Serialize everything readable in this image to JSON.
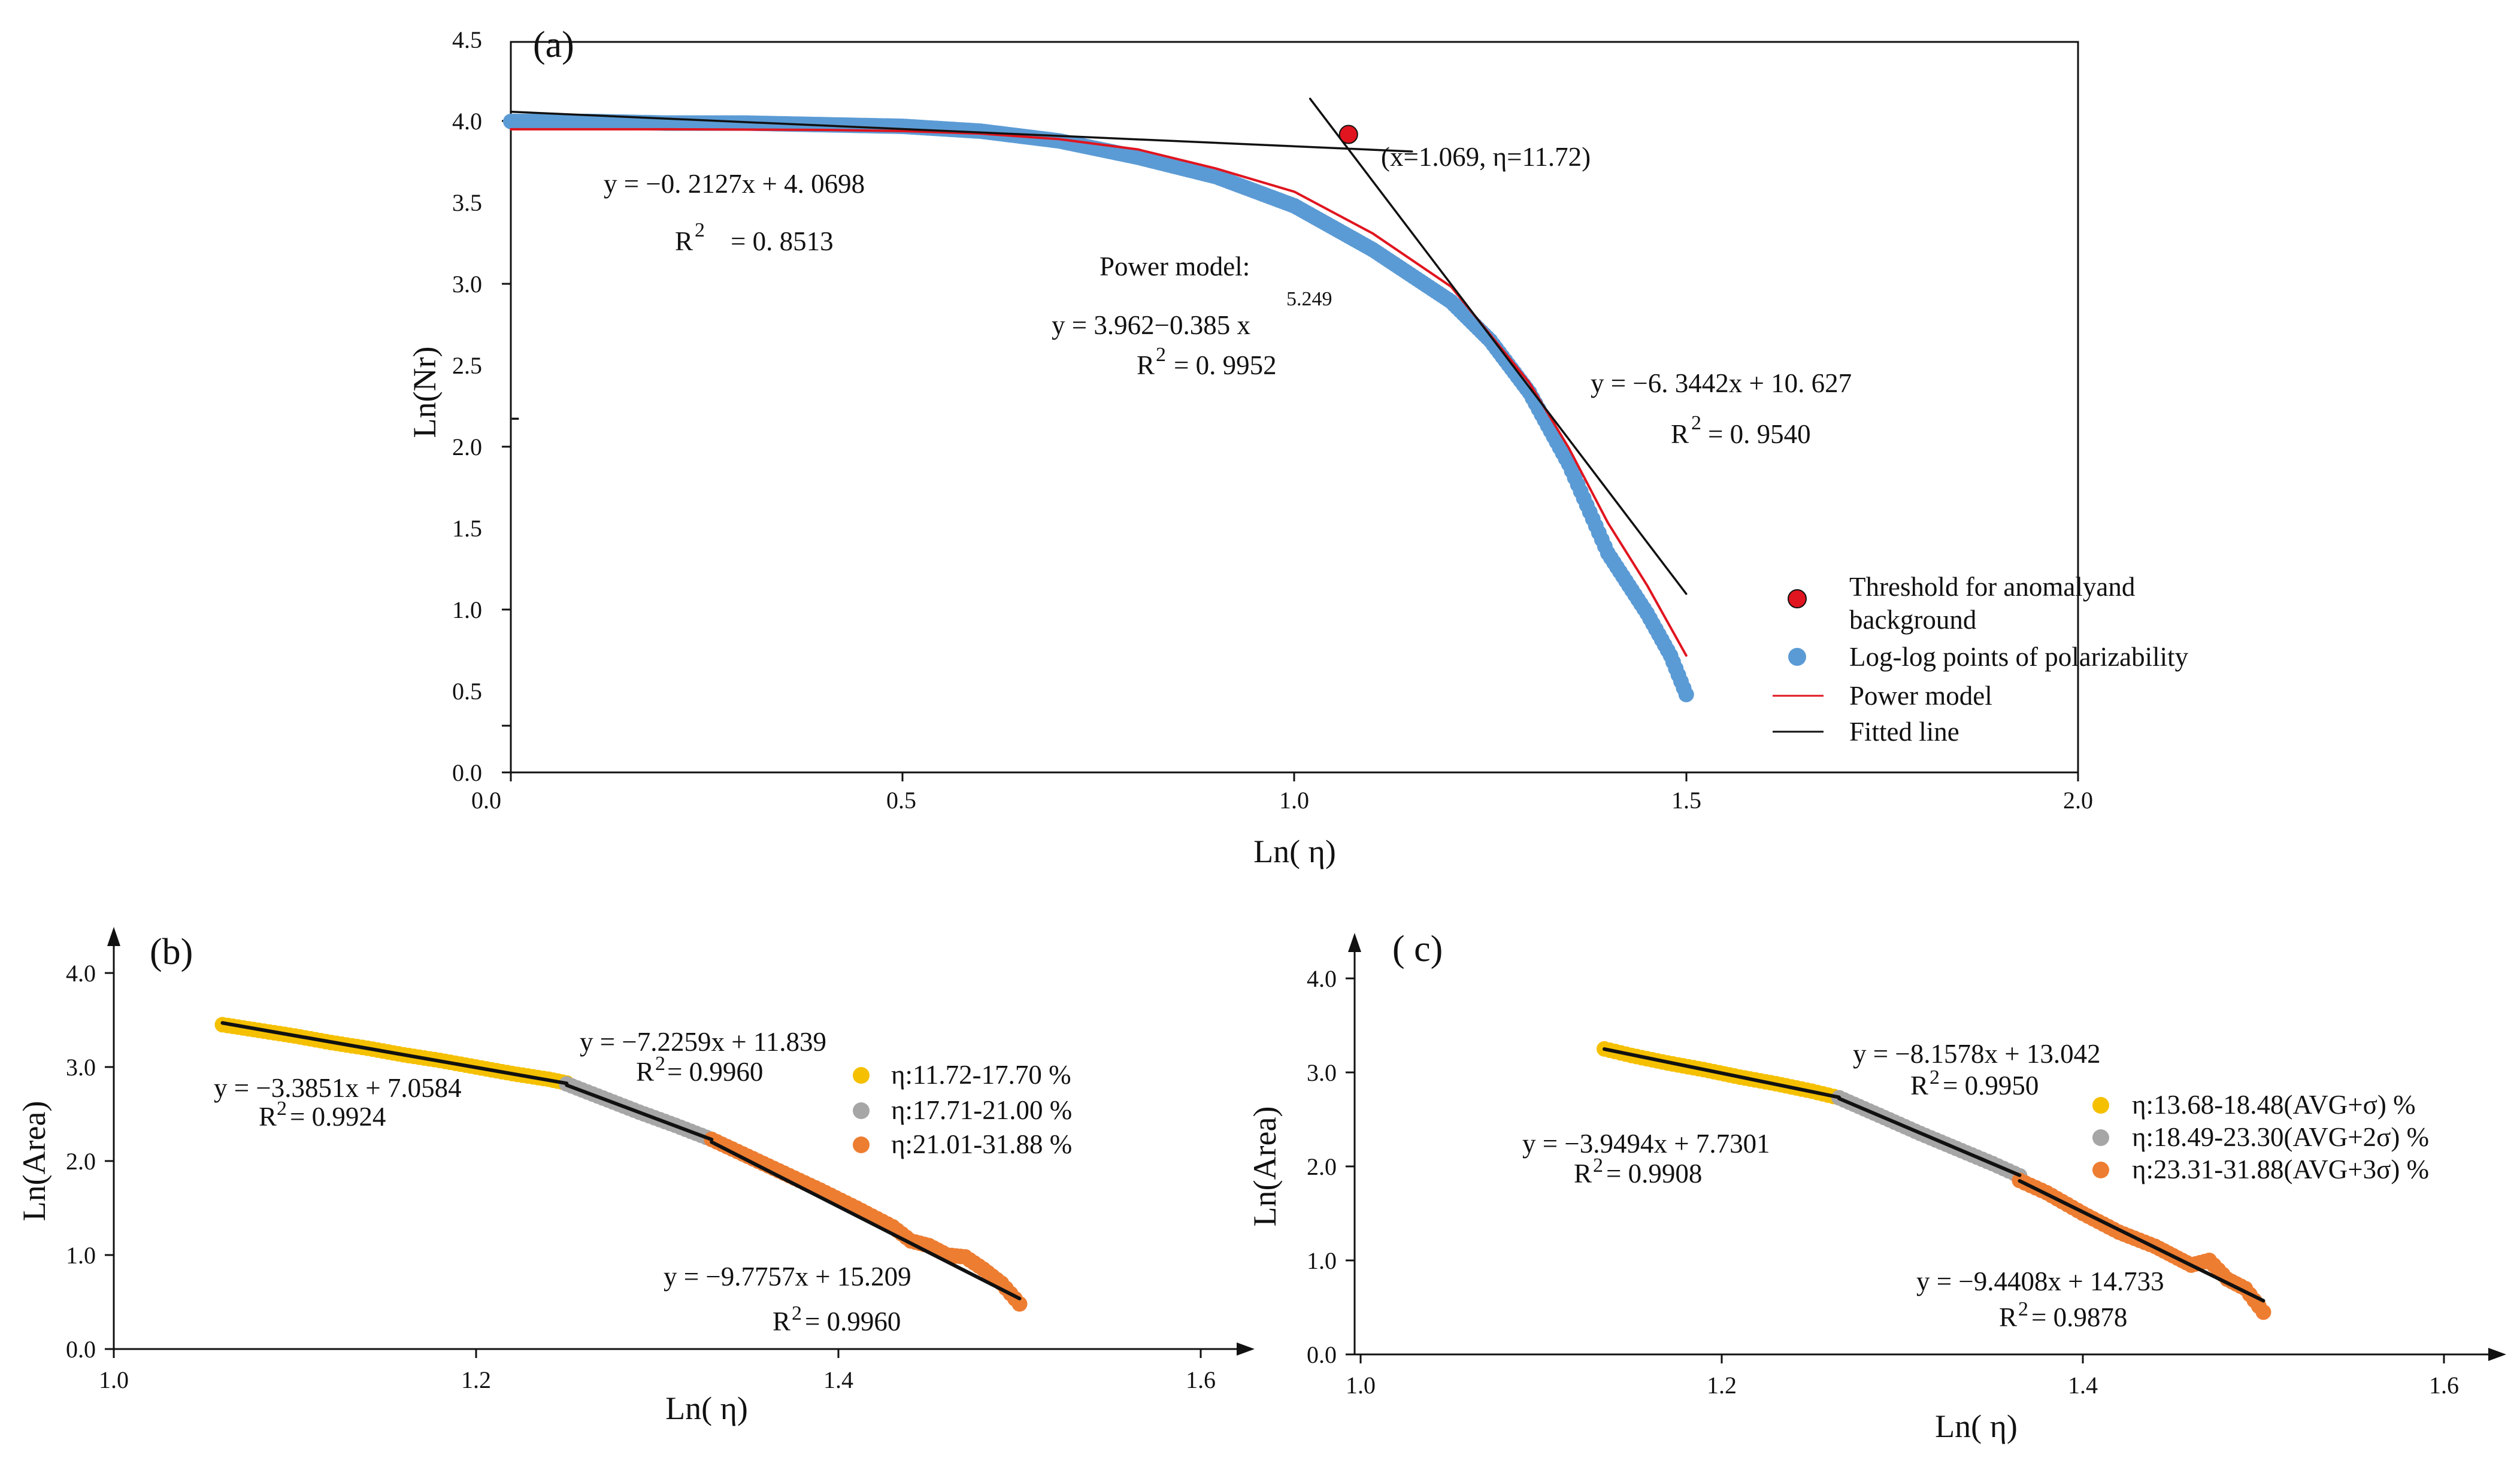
{
  "colors": {
    "blue_points": "#5b9bd5",
    "red_model": "#e0151f",
    "threshold_fill": "#e0151f",
    "fitted_line": "#111111",
    "yellow": "#f5c000",
    "gray": "#a6a6a6",
    "orange": "#ed7d31"
  },
  "chart_data": [
    {
      "id": "a",
      "type": "scatter",
      "panel_label": "(a)",
      "xlabel": "Ln( η)",
      "ylabel": "Ln(Nr)",
      "xlim": [
        0,
        2
      ],
      "ylim": [
        0,
        4.5
      ],
      "x_ticks": [
        "0.0",
        "0.5",
        "1.0",
        "1.5",
        "2.0"
      ],
      "y_ticks": [
        "0.0",
        "0.5",
        "1.0",
        "1.5",
        "2.0",
        "2.5",
        "3.0",
        "3.5",
        "4.0",
        "4.5"
      ],
      "series": [
        {
          "name": "Log-log points of polarizability",
          "kind": "points",
          "x": [
            0.0,
            0.1,
            0.2,
            0.3,
            0.4,
            0.5,
            0.6,
            0.7,
            0.8,
            0.9,
            1.0,
            1.1,
            1.2,
            1.25,
            1.3,
            1.35,
            1.4,
            1.45,
            1.48,
            1.5
          ],
          "y": [
            4.01,
            4.01,
            4.0,
            4.0,
            3.99,
            3.98,
            3.95,
            3.89,
            3.79,
            3.67,
            3.49,
            3.22,
            2.9,
            2.66,
            2.34,
            1.9,
            1.35,
            0.98,
            0.72,
            0.48
          ]
        },
        {
          "name": "Power model",
          "kind": "line",
          "x": [
            0.0,
            0.2,
            0.4,
            0.5,
            0.6,
            0.7,
            0.8,
            0.9,
            1.0,
            1.1,
            1.2,
            1.3,
            1.35,
            1.4,
            1.45,
            1.5
          ],
          "y": [
            3.962,
            3.962,
            3.958,
            3.951,
            3.935,
            3.901,
            3.838,
            3.72,
            3.577,
            3.32,
            2.992,
            2.399,
            2.0,
            1.538,
            1.153,
            0.72
          ]
        },
        {
          "name": "Fitted line",
          "kind": "line",
          "x": [
            0.0,
            1.15
          ],
          "y": [
            4.0698,
            3.825
          ]
        },
        {
          "name": "Fitted line",
          "kind": "line",
          "x": [
            1.02,
            1.5
          ],
          "y": [
            4.15,
            1.1
          ]
        },
        {
          "name": "Threshold for anomalyand background",
          "kind": "marker",
          "x": [
            1.069
          ],
          "y": [
            3.93
          ]
        }
      ],
      "annotations": {
        "eq1_line1": "y = −0. 2127x + 4. 0698",
        "eq1_r2_base": "R",
        "eq1_r2_sup": "2",
        "eq1_r2_val": "= 0. 8513",
        "power_title": "Power model:",
        "power_exponent": "5.249",
        "power_eq": "y = 3.962−0.385 x",
        "power_r2_base": "R",
        "power_r2_sup": "2",
        "power_r2_val": "= 0. 9952",
        "eq2_line1": "y = −6. 3442x + 10. 627",
        "eq2_r2_base": "R",
        "eq2_r2_sup": "2",
        "eq2_r2_val": "= 0. 9540",
        "threshold_label": "(x=1.069,  η=11.72)",
        "stray_mark": "-"
      },
      "legend": {
        "threshold_line1": "Threshold for anomalyand",
        "threshold_line2": "background",
        "points": "Log-log points of polarizability",
        "power": "Power model",
        "fitted": "Fitted line"
      }
    },
    {
      "id": "b",
      "type": "scatter",
      "panel_label": "(b)",
      "xlabel": "Ln( η)",
      "ylabel": "Ln(Area)",
      "xlim": [
        1.0,
        1.6
      ],
      "ylim": [
        0,
        4.0
      ],
      "x_ticks": [
        "1.0",
        "1.2",
        "1.4",
        "1.6"
      ],
      "y_ticks": [
        "0.0",
        "1.0",
        "2.0",
        "3.0",
        "4.0"
      ],
      "series": [
        {
          "name": "η:11.72-17.70 %",
          "color_key": "yellow",
          "x": [
            1.06,
            1.08,
            1.1,
            1.12,
            1.14,
            1.16,
            1.18,
            1.2,
            1.22,
            1.24,
            1.25
          ],
          "y": [
            3.45,
            3.39,
            3.33,
            3.26,
            3.2,
            3.13,
            3.07,
            3.0,
            2.93,
            2.87,
            2.83
          ]
        },
        {
          "name": "η:17.71-21.00 %",
          "color_key": "gray",
          "x": [
            1.25,
            1.27,
            1.29,
            1.31,
            1.33
          ],
          "y": [
            2.82,
            2.67,
            2.52,
            2.38,
            2.23
          ]
        },
        {
          "name": "η:21.01-31.88 %",
          "color_key": "orange",
          "x": [
            1.33,
            1.35,
            1.37,
            1.39,
            1.41,
            1.43,
            1.44,
            1.45,
            1.46,
            1.47,
            1.48,
            1.49,
            1.5
          ],
          "y": [
            2.23,
            2.05,
            1.87,
            1.69,
            1.5,
            1.3,
            1.15,
            1.1,
            1.0,
            0.98,
            0.85,
            0.7,
            0.48
          ]
        }
      ],
      "fit_lines": [
        {
          "x": [
            1.06,
            1.25
          ],
          "y": [
            3.469,
            2.826
          ]
        },
        {
          "x": [
            1.25,
            1.33
          ],
          "y": [
            2.807,
            2.229
          ]
        },
        {
          "x": [
            1.33,
            1.5
          ],
          "y": [
            2.202,
            0.537
          ]
        }
      ],
      "annotations": {
        "eq_mid": "y = −7.2259x + 11.839",
        "r2_mid_base": "R",
        "r2_mid_sup": "2",
        "r2_mid_val": "= 0.9960",
        "eq_left": "y = −3.3851x + 7.0584",
        "r2_left_base": "R",
        "r2_left_sup": "2",
        "r2_left_val": "= 0.9924",
        "eq_right": "y = −9.7757x + 15.209",
        "r2_right_base": "R",
        "r2_right_sup": "2",
        "r2_right_val": "= 0.9960"
      },
      "legend": [
        "η:11.72-17.70 %",
        "η:17.71-21.00 %",
        "η:21.01-31.88 %"
      ]
    },
    {
      "id": "c",
      "type": "scatter",
      "panel_label": "( c)",
      "xlabel": "Ln( η)",
      "ylabel": "Ln(Area)",
      "xlim": [
        1.0,
        1.6
      ],
      "ylim": [
        0,
        4.0
      ],
      "x_ticks": [
        "1.0",
        "1.2",
        "1.4",
        "1.6"
      ],
      "y_ticks": [
        "0.0",
        "1.0",
        "2.0",
        "3.0",
        "4.0"
      ],
      "series": [
        {
          "name": "η:13.68-18.48(AVG+σ) %",
          "color_key": "yellow",
          "x": [
            1.135,
            1.15,
            1.17,
            1.19,
            1.21,
            1.23,
            1.25,
            1.265
          ],
          "y": [
            3.25,
            3.18,
            3.1,
            3.03,
            2.95,
            2.88,
            2.8,
            2.73
          ]
        },
        {
          "name": "η:18.49-23.30(AVG+2σ) %",
          "color_key": "gray",
          "x": [
            1.265,
            1.29,
            1.31,
            1.33,
            1.35,
            1.365
          ],
          "y": [
            2.73,
            2.52,
            2.35,
            2.19,
            2.03,
            1.9
          ]
        },
        {
          "name": "η:23.31-31.88(AVG+3σ) %",
          "color_key": "orange",
          "x": [
            1.365,
            1.38,
            1.4,
            1.42,
            1.44,
            1.45,
            1.46,
            1.47,
            1.48,
            1.49,
            1.5
          ],
          "y": [
            1.85,
            1.72,
            1.5,
            1.3,
            1.15,
            1.05,
            0.95,
            1.0,
            0.8,
            0.7,
            0.45
          ]
        }
      ],
      "fit_lines": [
        {
          "x": [
            1.135,
            1.265
          ],
          "y": [
            3.248,
            2.735
          ]
        },
        {
          "x": [
            1.265,
            1.365
          ],
          "y": [
            2.722,
            1.906
          ]
        },
        {
          "x": [
            1.365,
            1.5
          ],
          "y": [
            1.846,
            0.571
          ]
        }
      ],
      "annotations": {
        "eq_mid": "y = −8.1578x + 13.042",
        "r2_mid_base": "R",
        "r2_mid_sup": "2",
        "r2_mid_val": "= 0.9950",
        "eq_left": "y = −3.9494x + 7.7301",
        "r2_left_base": "R",
        "r2_left_sup": "2",
        "r2_left_val": "= 0.9908",
        "eq_right": "y = −9.4408x + 14.733",
        "r2_right_base": "R",
        "r2_right_sup": "2",
        "r2_right_val": "= 0.9878"
      },
      "legend": [
        "η:13.68-18.48(AVG+σ) %",
        "η:18.49-23.30(AVG+2σ) %",
        "η:23.31-31.88(AVG+3σ) %"
      ]
    }
  ]
}
